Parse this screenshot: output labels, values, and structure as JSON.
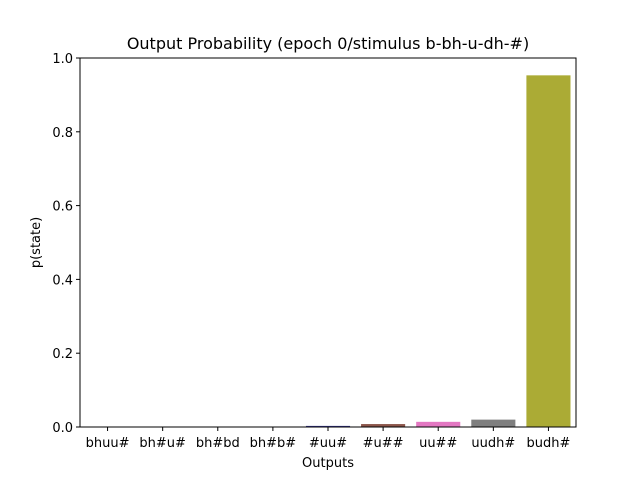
{
  "chart_data": {
    "type": "bar",
    "title": "Output Probability (epoch 0/stimulus b-bh-u-dh-#)",
    "xlabel": "Outputs",
    "ylabel": "p(state)",
    "ylim": [
      0,
      1.0
    ],
    "yticks": [
      "0.0",
      "0.2",
      "0.4",
      "0.6",
      "0.8",
      "1.0"
    ],
    "categories": [
      "bhuu#",
      "bh#u#",
      "bh#bd",
      "bh#b#",
      "#uu#",
      "#u##",
      "uu##",
      "uudh#",
      "budh#"
    ],
    "values": [
      0.0005,
      0.0005,
      0.0005,
      0.0008,
      0.003,
      0.008,
      0.014,
      0.02,
      0.953
    ],
    "colors": [
      "#1f77b4",
      "#ff7f0e",
      "#2ca02c",
      "#d62728",
      "#3a3a98",
      "#8c564b",
      "#e377c2",
      "#7f7f7f",
      "#abab35"
    ],
    "grid": false,
    "legend": "none"
  }
}
